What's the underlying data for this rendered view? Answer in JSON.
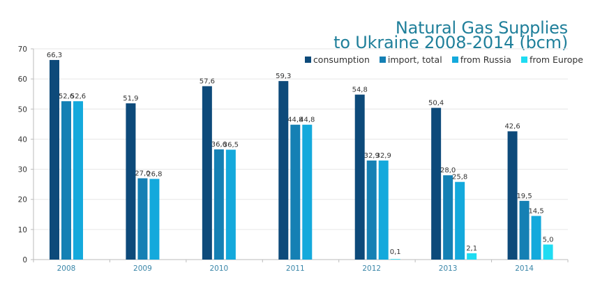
{
  "chart_data": {
    "type": "bar",
    "title": "Natural Gas Supplies to Ukraine 2008-2014 (bcm)",
    "title_lines": [
      "Natural Gas Supplies",
      "to Ukraine 2008-2014 (bcm)"
    ],
    "xlabel": "",
    "ylabel": "",
    "categories": [
      "2008",
      "2009",
      "2010",
      "2011",
      "2012",
      "2013",
      "2014"
    ],
    "series": [
      {
        "name": "consumption",
        "color": "#0d4a7a",
        "values": [
          66.3,
          51.9,
          57.6,
          59.3,
          54.8,
          50.4,
          42.6
        ],
        "labels": [
          "66,3",
          "51,9",
          "57,6",
          "59,3",
          "54,8",
          "50,4",
          "42,6"
        ]
      },
      {
        "name": "import, total",
        "color": "#1580b4",
        "values": [
          52.6,
          27.0,
          36.6,
          44.8,
          32.9,
          28.0,
          19.5
        ],
        "labels": [
          "52,6",
          "27,0",
          "36,6",
          "44,8",
          "32,9",
          "28,0",
          "19,5"
        ]
      },
      {
        "name": "from Russia",
        "color": "#14a9dc",
        "values": [
          52.6,
          26.8,
          36.5,
          44.8,
          32.9,
          25.8,
          14.5
        ],
        "labels": [
          "52,6",
          "26,8",
          "36,5",
          "44,8",
          "32,9",
          "25,8",
          "14,5"
        ]
      },
      {
        "name": "from Europe",
        "color": "#1fdcf2",
        "values": [
          null,
          null,
          null,
          null,
          0.1,
          2.1,
          5.0
        ],
        "labels": [
          null,
          null,
          null,
          null,
          "0,1",
          "2,1",
          "5,0"
        ]
      }
    ],
    "ylim": [
      0,
      70
    ],
    "yticks": [
      0,
      10,
      20,
      30,
      40,
      50,
      60,
      70
    ],
    "grid": true,
    "legend_position": "top-right",
    "colors": {
      "title": "#1f7f9a",
      "xtick": "#3a86a8",
      "ytick": "#333333",
      "grid": "#e6e6e6",
      "axis": "#bbbbbb"
    }
  }
}
